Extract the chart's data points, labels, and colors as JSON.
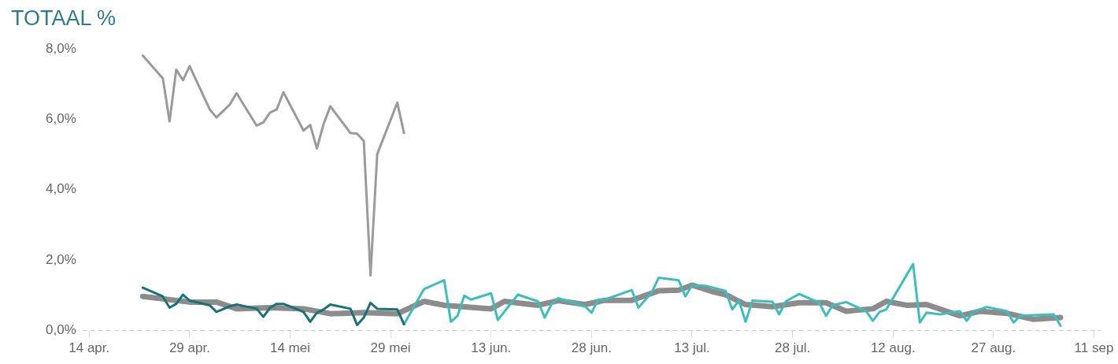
{
  "chart_data": {
    "type": "line",
    "title": "TOTAAL %",
    "xlim": [
      "--04-13",
      "--09-12"
    ],
    "xticks": [
      {
        "value": "--04-14",
        "label": "14 apr."
      },
      {
        "value": "--04-29",
        "label": "29 apr."
      },
      {
        "value": "--05-14",
        "label": "14 mei"
      },
      {
        "value": "--05-29",
        "label": "29 mei"
      },
      {
        "value": "--06-13",
        "label": "13 jun."
      },
      {
        "value": "--06-28",
        "label": "28 jun."
      },
      {
        "value": "--07-13",
        "label": "13 jul."
      },
      {
        "value": "--07-28",
        "label": "28 jul."
      },
      {
        "value": "--08-12",
        "label": "12 aug."
      },
      {
        "value": "--08-27",
        "label": "27 aug."
      },
      {
        "value": "--09-11",
        "label": "11 sep"
      }
    ],
    "ylim": [
      0,
      8
    ],
    "yticks": [
      {
        "value": 0,
        "label": "0,0%"
      },
      {
        "value": 2,
        "label": "2,0%"
      },
      {
        "value": 4,
        "label": "4,0%"
      },
      {
        "value": 6,
        "label": "6,0%"
      },
      {
        "value": 8,
        "label": "8,0%"
      }
    ],
    "grid": false,
    "legend": false,
    "marker": "none",
    "line_style": "solid",
    "ref_lines": [
      {
        "axis": "y",
        "value": 0,
        "color": "#c8c8c8",
        "line_style": "dashed"
      }
    ],
    "series": [
      {
        "color": "#8c8c8c",
        "x": [
          "--04-22",
          "--04-29",
          "--05-03",
          "--05-06",
          "--05-11",
          "--05-16",
          "--05-20",
          "--05-25",
          "--05-30",
          "--06-03",
          "--06-06",
          "--06-13",
          "--06-15",
          "--06-20",
          "--06-23",
          "--06-27",
          "--06-30",
          "--07-04",
          "--07-08",
          "--07-11",
          "--07-13",
          "--07-16",
          "--07-18",
          "--07-21",
          "--07-25",
          "--07-29",
          "--08-02",
          "--08-05",
          "--08-09",
          "--08-11",
          "--08-14",
          "--08-17",
          "--08-22",
          "--08-25",
          "--08-29",
          "--09-02",
          "--09-06"
        ],
        "values": [
          0.97,
          0.81,
          0.81,
          0.62,
          0.65,
          0.62,
          0.48,
          0.51,
          0.48,
          0.83,
          0.72,
          0.62,
          0.83,
          0.72,
          0.85,
          0.74,
          0.86,
          0.86,
          1.13,
          1.15,
          1.29,
          1.11,
          1.02,
          0.74,
          0.68,
          0.79,
          0.79,
          0.55,
          0.62,
          0.83,
          0.72,
          0.74,
          0.42,
          0.55,
          0.49,
          0.32,
          0.37
        ]
      },
      {
        "color": "#9a9a9a",
        "x": [
          "--04-22",
          "--04-25",
          "--04-26",
          "--04-27",
          "--04-28",
          "--04-29",
          "--05-02",
          "--05-03",
          "--05-05",
          "--05-06",
          "--05-09",
          "--05-10",
          "--05-11",
          "--05-12",
          "--05-13",
          "--05-16",
          "--05-17",
          "--05-18",
          "--05-19",
          "--05-20",
          "--05-23",
          "--05-24",
          "--05-25",
          "--05-26",
          "--05-27",
          "--05-30",
          "--05-31"
        ],
        "values": [
          7.81,
          7.16,
          5.94,
          7.41,
          7.11,
          7.51,
          6.28,
          6.05,
          6.42,
          6.74,
          5.82,
          5.91,
          6.19,
          6.28,
          6.77,
          5.68,
          5.84,
          5.17,
          5.87,
          6.37,
          5.61,
          5.59,
          5.38,
          1.57,
          5.01,
          6.47,
          5.61
        ]
      },
      {
        "color": "#3dbdc0",
        "x": [
          "--05-31",
          "--06-03",
          "--06-06",
          "--06-07",
          "--06-08",
          "--06-09",
          "--06-10",
          "--06-13",
          "--06-14",
          "--06-17",
          "--06-20",
          "--06-21",
          "--06-22",
          "--06-23",
          "--06-27",
          "--06-28",
          "--06-29",
          "--06-30",
          "--07-04",
          "--07-05",
          "--07-07",
          "--07-08",
          "--07-11",
          "--07-12",
          "--07-13",
          "--07-15",
          "--07-18",
          "--07-19",
          "--07-20",
          "--07-21",
          "--07-22",
          "--07-25",
          "--07-26",
          "--07-27",
          "--07-29",
          "--08-01",
          "--08-02",
          "--08-03",
          "--08-05",
          "--08-08",
          "--08-09",
          "--08-10",
          "--08-11",
          "--08-15",
          "--08-16",
          "--08-17",
          "--08-19",
          "--08-22",
          "--08-23",
          "--08-24",
          "--08-26",
          "--08-29",
          "--08-30",
          "--08-31",
          "--09-02",
          "--09-05",
          "--09-06"
        ],
        "values": [
          0.18,
          1.18,
          1.43,
          0.25,
          0.42,
          0.99,
          0.88,
          1.06,
          0.3,
          1.02,
          0.83,
          0.37,
          0.74,
          0.92,
          0.69,
          0.51,
          0.88,
          0.88,
          1.15,
          0.65,
          1.09,
          1.5,
          1.43,
          0.97,
          1.29,
          1.27,
          1.13,
          0.6,
          0.85,
          0.25,
          0.85,
          0.82,
          0.46,
          0.83,
          1.04,
          0.79,
          0.42,
          0.72,
          0.81,
          0.55,
          0.28,
          0.53,
          0.6,
          1.89,
          0.23,
          0.51,
          0.46,
          0.55,
          0.28,
          0.53,
          0.67,
          0.55,
          0.23,
          0.42,
          0.44,
          0.46,
          0.14
        ]
      },
      {
        "color": "#17727a",
        "x": [
          "--04-22",
          "--04-25",
          "--04-26",
          "--04-27",
          "--04-28",
          "--04-29",
          "--05-02",
          "--05-03",
          "--05-05",
          "--05-06",
          "--05-09",
          "--05-10",
          "--05-11",
          "--05-12",
          "--05-13",
          "--05-16",
          "--05-17",
          "--05-18",
          "--05-19",
          "--05-20",
          "--05-23",
          "--05-24",
          "--05-25",
          "--05-26",
          "--05-27",
          "--05-30",
          "--05-31"
        ],
        "values": [
          1.22,
          0.97,
          0.65,
          0.76,
          1.02,
          0.85,
          0.72,
          0.53,
          0.69,
          0.74,
          0.62,
          0.39,
          0.65,
          0.76,
          0.76,
          0.53,
          0.25,
          0.51,
          0.6,
          0.74,
          0.62,
          0.16,
          0.37,
          0.79,
          0.62,
          0.6,
          0.18
        ]
      }
    ]
  }
}
